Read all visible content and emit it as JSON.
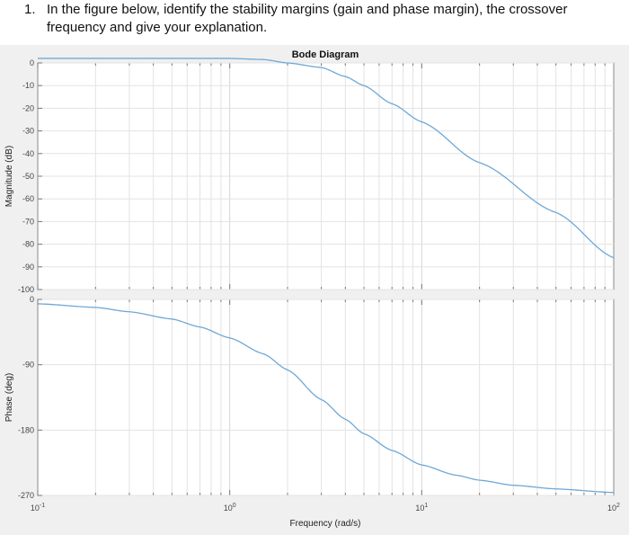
{
  "question": {
    "number": "1.",
    "line1": "In the figure below, identify the stability margins (gain and phase margin), the crossover",
    "line2": "frequency and give your explanation."
  },
  "chart_data": {
    "type": "line",
    "title": "Bode Diagram",
    "xlabel": "Frequency (rad/s)",
    "xscale": "log",
    "xlim": [
      0.1,
      100
    ],
    "x_ticks": [
      {
        "base": "10",
        "exp": "-1",
        "value": 0.1
      },
      {
        "base": "10",
        "exp": "0",
        "value": 1
      },
      {
        "base": "10",
        "exp": "1",
        "value": 10
      },
      {
        "base": "10",
        "exp": "2",
        "value": 100
      }
    ],
    "grid": true,
    "line_color": "#6fa8d6",
    "magnitude": {
      "ylabel": "Magnitude (dB)",
      "ylim": [
        -100,
        0
      ],
      "y_ticks": [
        "0",
        "-10",
        "-20",
        "-30",
        "-40",
        "-50",
        "-60",
        "-70",
        "-80",
        "-90",
        "-100"
      ],
      "x": [
        0.1,
        0.2,
        0.5,
        1,
        1.5,
        2,
        3,
        4,
        5,
        7,
        10,
        20,
        50,
        100
      ],
      "y": [
        2,
        2,
        2,
        2,
        1.5,
        0,
        -2,
        -6,
        -10,
        -18,
        -26,
        -44,
        -66,
        -86
      ]
    },
    "phase": {
      "ylabel": "Phase (deg)",
      "ylim": [
        -270,
        0
      ],
      "y_ticks": [
        "0",
        "-90",
        "-180",
        "-270"
      ],
      "x": [
        0.1,
        0.2,
        0.3,
        0.5,
        0.7,
        1,
        1.5,
        2,
        3,
        4,
        5,
        7,
        10,
        15,
        20,
        30,
        50,
        100
      ],
      "y": [
        -6,
        -11,
        -17,
        -27,
        -38,
        -53,
        -75,
        -97,
        -138,
        -165,
        -185,
        -208,
        -228,
        -242,
        -249,
        -256,
        -261,
        -266
      ]
    }
  }
}
